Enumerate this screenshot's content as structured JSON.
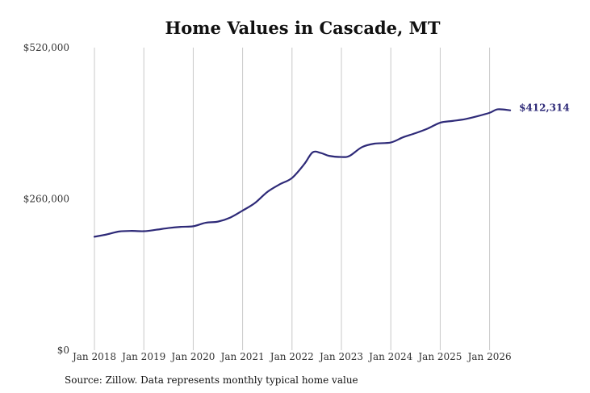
{
  "chart_data": {
    "type": "line",
    "title": "Home Values in Cascade, MT",
    "xlabel": "",
    "ylabel": "",
    "ylim": [
      0,
      520000
    ],
    "xlim": [
      "2018-01",
      "2026-06"
    ],
    "y_ticks": [
      {
        "value": 0,
        "label": "$0"
      },
      {
        "value": 260000,
        "label": "$260,000"
      },
      {
        "value": 520000,
        "label": "$520,000"
      }
    ],
    "x_ticks": [
      {
        "value": "2018-01",
        "label": "Jan 2018"
      },
      {
        "value": "2019-01",
        "label": "Jan 2019"
      },
      {
        "value": "2020-01",
        "label": "Jan 2020"
      },
      {
        "value": "2021-01",
        "label": "Jan 2021"
      },
      {
        "value": "2022-01",
        "label": "Jan 2022"
      },
      {
        "value": "2023-01",
        "label": "Jan 2023"
      },
      {
        "value": "2024-01",
        "label": "Jan 2024"
      },
      {
        "value": "2025-01",
        "label": "Jan 2025"
      },
      {
        "value": "2026-01",
        "label": "Jan 2026"
      }
    ],
    "grid": {
      "vertical": true,
      "horizontal": false
    },
    "series": [
      {
        "name": "",
        "color": "#2e2a78",
        "end_label": "$412,314",
        "points": [
          {
            "x": "2018-01",
            "y": 195000
          },
          {
            "x": "2018-04",
            "y": 199000
          },
          {
            "x": "2018-07",
            "y": 204000
          },
          {
            "x": "2018-10",
            "y": 205000
          },
          {
            "x": "2019-01",
            "y": 204500
          },
          {
            "x": "2019-04",
            "y": 207000
          },
          {
            "x": "2019-07",
            "y": 210000
          },
          {
            "x": "2019-10",
            "y": 212000
          },
          {
            "x": "2020-01",
            "y": 213000
          },
          {
            "x": "2020-04",
            "y": 219000
          },
          {
            "x": "2020-07",
            "y": 221000
          },
          {
            "x": "2020-10",
            "y": 228000
          },
          {
            "x": "2021-01",
            "y": 240000
          },
          {
            "x": "2021-04",
            "y": 253000
          },
          {
            "x": "2021-07",
            "y": 272000
          },
          {
            "x": "2021-10",
            "y": 285000
          },
          {
            "x": "2022-01",
            "y": 296000
          },
          {
            "x": "2022-04",
            "y": 320000
          },
          {
            "x": "2022-06",
            "y": 340000
          },
          {
            "x": "2022-08",
            "y": 339000
          },
          {
            "x": "2022-10",
            "y": 334000
          },
          {
            "x": "2023-01",
            "y": 332000
          },
          {
            "x": "2023-03",
            "y": 334000
          },
          {
            "x": "2023-06",
            "y": 349000
          },
          {
            "x": "2023-09",
            "y": 355000
          },
          {
            "x": "2024-01",
            "y": 357000
          },
          {
            "x": "2024-04",
            "y": 366000
          },
          {
            "x": "2024-07",
            "y": 373000
          },
          {
            "x": "2024-10",
            "y": 381000
          },
          {
            "x": "2025-01",
            "y": 391000
          },
          {
            "x": "2025-04",
            "y": 394000
          },
          {
            "x": "2025-07",
            "y": 397000
          },
          {
            "x": "2025-10",
            "y": 402000
          },
          {
            "x": "2026-01",
            "y": 408000
          },
          {
            "x": "2026-03",
            "y": 414000
          },
          {
            "x": "2026-06",
            "y": 412314
          }
        ]
      }
    ]
  },
  "footer": {
    "source": "Source: Zillow. Data represents monthly typical home value"
  }
}
